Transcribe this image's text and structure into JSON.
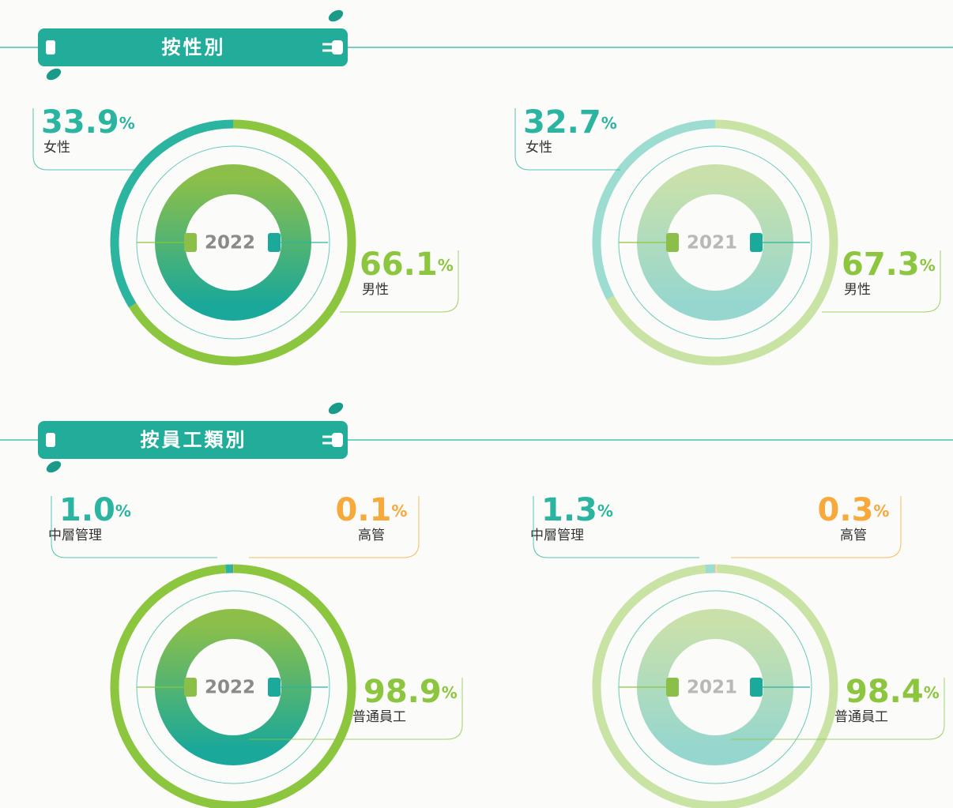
{
  "sections": [
    {
      "title": "按性別"
    },
    {
      "title": "按員工類別"
    }
  ],
  "chart_data": [
    {
      "type": "pie",
      "title": "2022",
      "categories": [
        "女性",
        "男性"
      ],
      "values": [
        33.9,
        66.1
      ],
      "value_labels": [
        "33.9%",
        "66.1%"
      ],
      "colors": [
        "#2bb5a0",
        "#8cc63f"
      ]
    },
    {
      "type": "pie",
      "title": "2021",
      "categories": [
        "女性",
        "男性"
      ],
      "values": [
        32.7,
        67.3
      ],
      "value_labels": [
        "32.7%",
        "67.3%"
      ],
      "colors": [
        "#2bb5a0",
        "#8cc63f"
      ]
    },
    {
      "type": "pie",
      "title": "2022",
      "categories": [
        "中層管理",
        "高管",
        "普通員工"
      ],
      "values": [
        1.0,
        0.1,
        98.9
      ],
      "value_labels": [
        "1.0%",
        "0.1%",
        "98.9%"
      ],
      "colors": [
        "#2bb5a0",
        "#f7a93b",
        "#8cc63f"
      ]
    },
    {
      "type": "pie",
      "title": "2021",
      "categories": [
        "中層管理",
        "高管",
        "普通員工"
      ],
      "values": [
        1.3,
        0.3,
        98.4
      ],
      "value_labels": [
        "1.3%",
        "0.3%",
        "98.4%"
      ],
      "colors": [
        "#2bb5a0",
        "#f7a93b",
        "#8cc63f"
      ]
    }
  ]
}
